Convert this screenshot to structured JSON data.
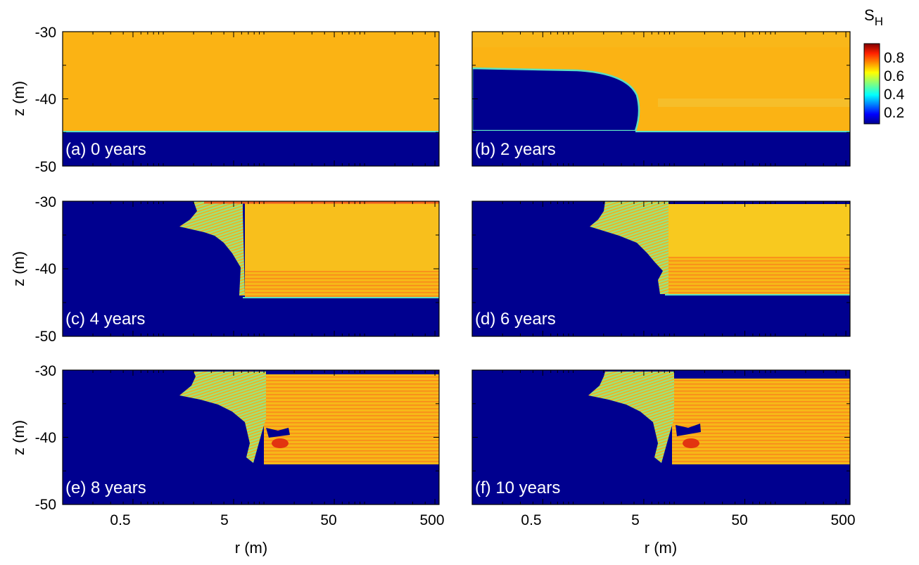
{
  "chart_data": {
    "type": "heatmap",
    "colorbar": {
      "label_main": "S",
      "label_sub": "H",
      "ticks": [
        "0.8",
        "0.6",
        "0.4",
        "0.2"
      ],
      "range": [
        0.1,
        0.85
      ]
    },
    "x_axis": {
      "label": "r (m)",
      "scale": "log",
      "range": [
        0.1,
        550
      ],
      "ticks": [
        {
          "value": 0.5,
          "label": "0.5"
        },
        {
          "value": 5,
          "label": "5"
        },
        {
          "value": 50,
          "label": "50"
        },
        {
          "value": 500,
          "label": "500"
        }
      ]
    },
    "y_axis": {
      "label": "z (m)",
      "range": [
        -50,
        -30
      ],
      "ticks": [
        {
          "value": -30,
          "label": "-30"
        },
        {
          "value": -40,
          "label": "-40"
        },
        {
          "value": -50,
          "label": "-50"
        }
      ]
    },
    "panels": [
      {
        "label": "(a) 0 years",
        "years": 0,
        "hydrate_zone": {
          "top_z": -30,
          "bottom_z": -45,
          "inner_r": 0.1,
          "outer_r": 550
        },
        "saturation": 0.58
      },
      {
        "label": "(b) 2 years",
        "years": 2,
        "hydrate_zone": {
          "top_z": -30,
          "bottom_z": -45,
          "dissociation_front_r": 5,
          "top_front_z": -35.5
        },
        "saturation": 0.58
      },
      {
        "label": "(c) 4 years",
        "years": 4,
        "hydrate_zone": {
          "top_z": -30,
          "bottom_z": -44.5,
          "dissociation_front_r": 7
        },
        "saturation": 0.6
      },
      {
        "label": "(d) 6 years",
        "years": 6,
        "hydrate_zone": {
          "top_z": -30.5,
          "bottom_z": -44,
          "dissociation_front_r": 8
        },
        "saturation": 0.6
      },
      {
        "label": "(e) 8 years",
        "years": 8,
        "hydrate_zone": {
          "top_z": -31,
          "bottom_z": -44,
          "dissociation_front_r": 9
        },
        "saturation": 0.62
      },
      {
        "label": "(f) 10 years",
        "years": 10,
        "hydrate_zone": {
          "top_z": -31,
          "bottom_z": -44,
          "dissociation_front_r": 9
        },
        "saturation": 0.62
      }
    ],
    "colors": {
      "low": "#00008f",
      "mid": "#fbb314",
      "high": "#e23410",
      "cyan": "#5ce0c2"
    }
  }
}
